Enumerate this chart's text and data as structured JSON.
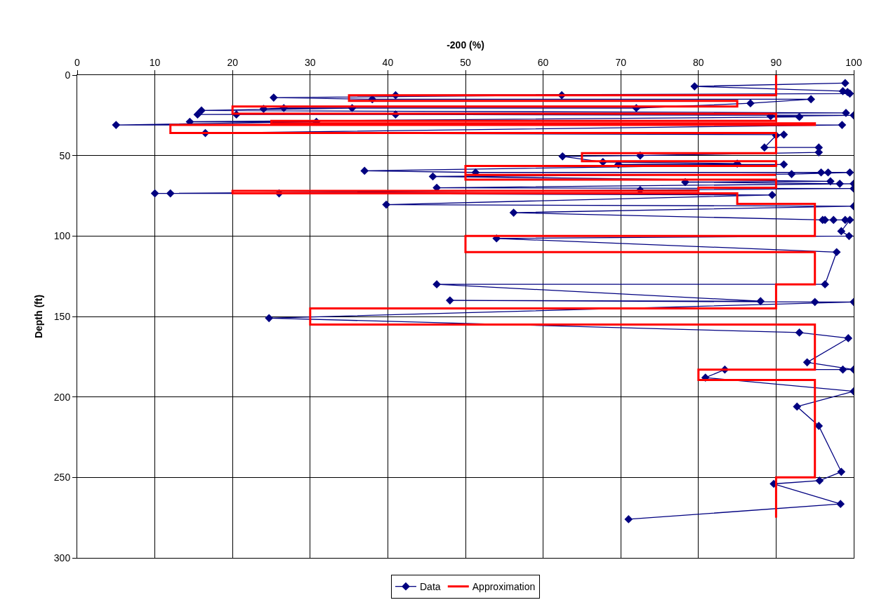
{
  "chart_data": {
    "type": "line",
    "xlabel": "-200 (%)",
    "ylabel": "Depth (ft)",
    "xlim": [
      0,
      100
    ],
    "xticks": [
      0,
      10,
      20,
      30,
      40,
      50,
      60,
      70,
      80,
      90,
      100
    ],
    "ylim": [
      300,
      0
    ],
    "yticks": [
      0,
      50,
      100,
      150,
      200,
      250,
      300
    ],
    "grid": true,
    "legend": "bottom",
    "series": [
      {
        "name": "Data",
        "color": "#000080",
        "marker": "diamond",
        "line_style": "solid",
        "x": [
          98.9,
          79.5,
          98.6,
          99.2,
          99.5,
          41,
          62.4,
          25.3,
          38,
          94.5,
          86.7,
          72,
          26.6,
          24,
          35.4,
          16,
          99,
          15.5,
          20.5,
          41,
          100,
          89.3,
          93,
          14.5,
          30.8,
          5,
          98.5,
          16.5,
          91,
          90,
          88.5,
          95.5,
          95.5,
          72.5,
          62.5,
          67.7,
          85,
          69.7,
          91,
          37,
          51.3,
          95.8,
          96.7,
          99.5,
          92,
          45.8,
          97,
          78.3,
          98.2,
          100,
          46.3,
          100,
          72.5,
          10,
          12,
          26,
          89.5,
          39.8,
          100,
          56.2,
          96,
          96.3,
          97.4,
          98.9,
          99.5,
          98.4,
          99.4,
          54,
          97.8,
          96.3,
          46.3,
          88,
          48,
          95,
          100,
          24.7,
          93,
          99.3,
          94,
          100,
          98.6,
          83.4,
          80.9,
          100,
          92.7,
          95.5,
          98.4,
          95.6,
          89.7,
          98.3,
          71
        ],
        "values": [
          5,
          7,
          10,
          10.5,
          11.5,
          12.5,
          12.5,
          14,
          15,
          15,
          17.5,
          20.5,
          20.5,
          21,
          20.5,
          22,
          23.5,
          24.5,
          24.5,
          24.5,
          25,
          25.5,
          26,
          29,
          29,
          31,
          31,
          36,
          37,
          37.5,
          45,
          45,
          48,
          50,
          50.5,
          54,
          55,
          55.5,
          55.5,
          59.5,
          60.5,
          60.5,
          60.5,
          60.5,
          61.5,
          63,
          66,
          66.5,
          67.5,
          67.5,
          70,
          70.5,
          71.5,
          73.5,
          73.5,
          73.5,
          74.5,
          80.5,
          81.5,
          85.5,
          90,
          90,
          90,
          90,
          90,
          97,
          100,
          101.5,
          110,
          130,
          130,
          140.5,
          140,
          141,
          141,
          151,
          160,
          163.5,
          178.5,
          183,
          183,
          183,
          188,
          196.5,
          206,
          218,
          246.5,
          252,
          254,
          266.5,
          276
        ]
      },
      {
        "name": "Approximation",
        "color": "#ff0000",
        "marker": "none",
        "line_style": "solid",
        "x": [
          90,
          90,
          35,
          35,
          85,
          85,
          20,
          20,
          90,
          90,
          25,
          25,
          95,
          95,
          12,
          12,
          90,
          90,
          65,
          65,
          90,
          90,
          50,
          50,
          90,
          50,
          50,
          90,
          90,
          80,
          80,
          20,
          20,
          85,
          85,
          95,
          95,
          50,
          50,
          95,
          95,
          90,
          90,
          30,
          30,
          95,
          95,
          80,
          80,
          95,
          95,
          90,
          90
        ],
        "values": [
          0,
          12.5,
          12.5,
          16,
          16,
          19.5,
          19.5,
          24,
          24,
          28.5,
          28.5,
          30,
          30,
          31,
          31,
          36,
          36,
          48.5,
          48.5,
          53.5,
          53.5,
          56.5,
          56.5,
          62,
          62,
          62,
          65,
          65,
          70,
          70,
          72,
          72,
          73.5,
          73.5,
          80,
          80,
          100,
          100,
          110,
          110,
          130,
          130,
          145,
          145,
          155,
          155,
          183,
          183,
          189.5,
          189.5,
          250,
          250,
          275
        ]
      }
    ]
  }
}
